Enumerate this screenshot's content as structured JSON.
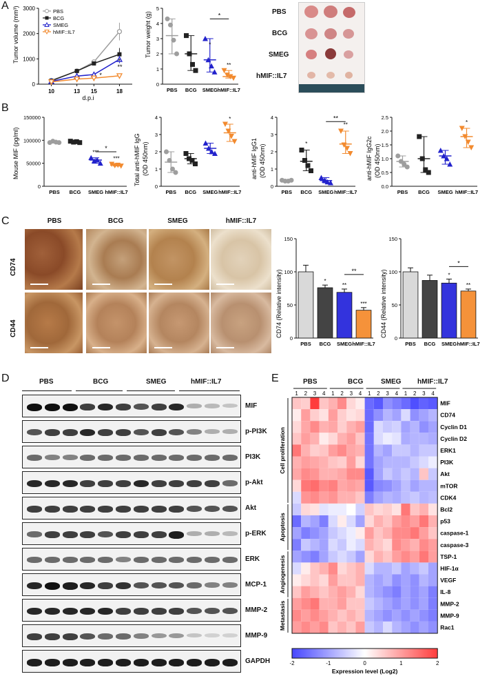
{
  "panels": {
    "A": "A",
    "B": "B",
    "C": "C",
    "D": "D",
    "E": "E"
  },
  "groups": [
    "PBS",
    "BCG",
    "SMEG",
    "hMIF::IL7"
  ],
  "colors": {
    "PBS": "#9e9e9e",
    "BCG": "#222222",
    "SMEG": "#2222cc",
    "hMIF_IL7": "#f28a2e"
  },
  "panelA": {
    "tumor_volume": {
      "ylabel": "Tumor volume (mm³)",
      "xlabel": "d.p.i",
      "x_ticks": [
        "10",
        "13",
        "15",
        "18"
      ],
      "y_ticks": [
        "0",
        "1000",
        "2000",
        "3000"
      ],
      "legend": [
        "PBS",
        "BCG",
        "SMEG",
        "hMIF::IL7"
      ],
      "sig": [
        "*",
        "*",
        "**"
      ]
    },
    "tumor_weight": {
      "ylabel": "Tumor weight (g)",
      "y_ticks": [
        "0",
        "1",
        "2",
        "3",
        "4",
        "5"
      ],
      "sig_bar": "*",
      "sig": [
        "*",
        "**"
      ]
    },
    "photo_labels": [
      "PBS",
      "BCG",
      "SMEG",
      "hMIF::IL7"
    ]
  },
  "panelB": {
    "charts": [
      {
        "ylabel": "Mouse MIF (pg/ml)",
        "y_ticks": [
          "0",
          "50000",
          "100000",
          "150000"
        ],
        "sig_bar": "*",
        "sig": [
          "***",
          "***"
        ]
      },
      {
        "ylabel": "Total anti-hMIF IgG\n(OD 450nm)",
        "y_ticks": [
          "0",
          "1",
          "2",
          "3",
          "4"
        ],
        "sig": [
          "*"
        ]
      },
      {
        "ylabel": "anti-hMIF IgG1\n(OD 450nm)",
        "y_ticks": [
          "0",
          "1",
          "2",
          "3",
          "4"
        ],
        "sig_bar": "**",
        "sig": [
          "*",
          "**"
        ]
      },
      {
        "ylabel": "anti-hMIF IgG2c\n(OD 450nm)",
        "y_ticks": [
          "0.0",
          "0.5",
          "1.0",
          "1.5",
          "2.0",
          "2.5"
        ],
        "sig": [
          "*"
        ]
      }
    ]
  },
  "panelC": {
    "row_labels": [
      "CD74",
      "CD44"
    ],
    "col_labels": [
      "PBS",
      "BCG",
      "SMEG",
      "hMIF::IL7"
    ],
    "cd74": {
      "ylabel": "CD74 (Relative intensity)",
      "y_ticks": [
        "0",
        "50",
        "100",
        "150"
      ],
      "sig_bar": "**",
      "sig": [
        "*",
        "**",
        "***"
      ]
    },
    "cd44": {
      "ylabel": "CD44 (Relative intensity)",
      "y_ticks": [
        "0",
        "50",
        "100",
        "150"
      ],
      "sig_bar": "*",
      "sig": [
        "*",
        "**"
      ]
    }
  },
  "panelD": {
    "group_labels": [
      "PBS",
      "BCG",
      "SMEG",
      "hMIF::IL7"
    ],
    "proteins": [
      "MIF",
      "p-PI3K",
      "PI3K",
      "p-Akt",
      "Akt",
      "p-ERK",
      "ERK",
      "MCP-1",
      "MMP-2",
      "MMP-9",
      "GAPDH"
    ]
  },
  "panelE": {
    "group_labels": [
      "PBS",
      "BCG",
      "SMEG",
      "hMIF::IL7"
    ],
    "replicates": [
      "1",
      "2",
      "3",
      "4"
    ],
    "genes": [
      "MIF",
      "CD74",
      "Cyclin D1",
      "Cyclin D2",
      "ERK1",
      "PI3K",
      "Akt",
      "mTOR",
      "CDK4",
      "Bcl2",
      "p53",
      "caspase-1",
      "caspase-3",
      "TSP-1",
      "HIF-1α",
      "VEGF",
      "IL-8",
      "MMP-2",
      "MMP-9",
      "Rac1"
    ],
    "categories": [
      "Cell proliferation",
      "Apoptosis",
      "Angiogenesis",
      "Metastasis"
    ],
    "colorbar_ticks": [
      "-2",
      "-1",
      "0",
      "1",
      "2"
    ],
    "colorbar_label": "Expression level (Log2)"
  },
  "chart_data": [
    {
      "type": "line",
      "title": "",
      "xlabel": "d.p.i",
      "ylabel": "Tumor volume (mm³)",
      "x": [
        10,
        13,
        15,
        18
      ],
      "ylim": [
        0,
        3000
      ],
      "series": [
        {
          "name": "PBS",
          "values": [
            150,
            520,
            880,
            2080
          ],
          "err": [
            20,
            50,
            90,
            350
          ]
        },
        {
          "name": "BCG",
          "values": [
            130,
            520,
            820,
            1180
          ],
          "err": [
            20,
            40,
            60,
            250
          ]
        },
        {
          "name": "SMEG",
          "values": [
            110,
            320,
            380,
            980
          ],
          "err": [
            15,
            40,
            50,
            150
          ]
        },
        {
          "name": "hMIF::IL7",
          "values": [
            90,
            200,
            240,
            330
          ],
          "err": [
            15,
            30,
            40,
            60
          ]
        }
      ],
      "legend": "top-left"
    },
    {
      "type": "scatter",
      "title": "",
      "ylabel": "Tumor weight (g)",
      "categories": [
        "PBS",
        "BCG",
        "SMEG",
        "hMIF::IL7"
      ],
      "ylim": [
        0,
        5
      ],
      "points": [
        [
          4.3,
          3.9,
          2.9,
          2.0
        ],
        [
          3.2,
          2.0,
          1.3,
          0.9
        ],
        [
          3.0,
          1.6,
          1.2,
          0.8
        ],
        [
          0.9,
          0.6,
          0.5,
          0.4
        ]
      ],
      "means": [
        3.2,
        2.0,
        1.6,
        0.5
      ]
    },
    {
      "type": "scatter",
      "ylabel": "Mouse MIF (pg/ml)",
      "categories": [
        "PBS",
        "BCG",
        "SMEG",
        "hMIF::IL7"
      ],
      "ylim": [
        0,
        150000
      ],
      "points": [
        [
          95000,
          98000,
          96000,
          95000
        ],
        [
          98000,
          96000,
          97000,
          95000
        ],
        [
          62000,
          55000,
          57000,
          50000
        ],
        [
          48000,
          45000,
          46000,
          44000
        ]
      ],
      "means": [
        96000,
        96500,
        57000,
        46000
      ]
    },
    {
      "type": "scatter",
      "ylabel": "Total anti-hMIF IgG (OD 450nm)",
      "categories": [
        "PBS",
        "BCG",
        "SMEG",
        "hMIF::IL7"
      ],
      "ylim": [
        0,
        4
      ],
      "points": [
        [
          2.0,
          1.5,
          1.0,
          0.8
        ],
        [
          1.9,
          1.6,
          1.5,
          1.3
        ],
        [
          2.5,
          2.2,
          2.0,
          1.9
        ],
        [
          3.6,
          3.2,
          2.9,
          2.6
        ]
      ],
      "means": [
        1.4,
        1.6,
        2.2,
        3.1
      ]
    },
    {
      "type": "scatter",
      "ylabel": "anti-hMIF IgG1 (OD 450nm)",
      "categories": [
        "PBS",
        "BCG",
        "SMEG",
        "hMIF::IL7"
      ],
      "ylim": [
        0,
        4
      ],
      "points": [
        [
          0.35,
          0.3,
          0.3,
          0.35
        ],
        [
          2.1,
          1.5,
          1.2,
          0.9
        ],
        [
          0.5,
          0.35,
          0.25,
          0.2
        ],
        [
          3.2,
          2.4,
          2.2,
          1.9
        ]
      ],
      "means": [
        0.32,
        1.45,
        0.33,
        2.45
      ]
    },
    {
      "type": "scatter",
      "ylabel": "anti-hMIF IgG2c (OD 450nm)",
      "categories": [
        "PBS",
        "BCG",
        "SMEG",
        "hMIF::IL7"
      ],
      "ylim": [
        0,
        2.5
      ],
      "points": [
        [
          1.1,
          0.9,
          0.8,
          0.7
        ],
        [
          1.8,
          1.0,
          0.6,
          0.5
        ],
        [
          1.3,
          1.1,
          1.0,
          0.8
        ],
        [
          2.1,
          1.8,
          1.6,
          1.4
        ]
      ],
      "means": [
        0.9,
        1.0,
        1.1,
        1.8
      ]
    },
    {
      "type": "bar",
      "ylabel": "CD74 (Relative intensity)",
      "categories": [
        "PBS",
        "BCG",
        "SMEG",
        "hMIF::IL7"
      ],
      "values": [
        100,
        76,
        69,
        42
      ],
      "err": [
        10,
        4,
        5,
        4
      ],
      "ylim": [
        0,
        150
      ]
    },
    {
      "type": "bar",
      "ylabel": "CD44 (Relative intensity)",
      "categories": [
        "PBS",
        "BCG",
        "SMEG",
        "hMIF::IL7"
      ],
      "values": [
        100,
        87,
        83,
        71
      ],
      "err": [
        6,
        8,
        6,
        3
      ],
      "ylim": [
        0,
        150
      ]
    },
    {
      "type": "heatmap",
      "rows": [
        "MIF",
        "CD74",
        "Cyclin D1",
        "Cyclin D2",
        "ERK1",
        "PI3K",
        "Akt",
        "mTOR",
        "CDK4",
        "Bcl2",
        "p53",
        "caspase-1",
        "caspase-3",
        "TSP-1",
        "HIF-1α",
        "VEGF",
        "IL-8",
        "MMP-2",
        "MMP-9",
        "Rac1"
      ],
      "columns": [
        "PBS 1",
        "PBS 2",
        "PBS 3",
        "PBS 4",
        "BCG 1",
        "BCG 2",
        "BCG 3",
        "BCG 4",
        "SMEG 1",
        "SMEG 2",
        "SMEG 3",
        "SMEG 4",
        "hMIF::IL7 1",
        "hMIF::IL7 2",
        "hMIF::IL7 3",
        "hMIF::IL7 4"
      ],
      "value_range": [
        -2,
        2
      ],
      "values": [
        [
          0.6,
          0.5,
          2.0,
          0.6,
          0.8,
          1.2,
          0.4,
          0.2,
          -1.6,
          -1.8,
          -1.2,
          -1.4,
          -1.6,
          -1.9,
          -1.7,
          -1.8
        ],
        [
          0.2,
          1.0,
          0.5,
          0.3,
          1.0,
          0.5,
          0.3,
          0.4,
          -1.6,
          -1.2,
          -0.8,
          -1.0,
          -0.4,
          -1.2,
          -1.0,
          -0.8
        ],
        [
          0.4,
          0.9,
          1.2,
          0.8,
          0.9,
          0.5,
          0.8,
          1.0,
          -1.6,
          -0.4,
          -0.6,
          -0.5,
          -1.0,
          -0.8,
          -1.2,
          -1.0
        ],
        [
          0.6,
          1.0,
          0.8,
          0.2,
          0.4,
          0.8,
          1.0,
          0.6,
          -1.5,
          -0.4,
          -0.2,
          -0.3,
          -0.9,
          -0.8,
          -0.8,
          -0.9
        ],
        [
          1.4,
          0.8,
          0.5,
          0.6,
          1.0,
          1.2,
          0.9,
          0.8,
          -1.5,
          -0.8,
          -1.0,
          -0.6,
          -0.6,
          -0.8,
          -0.6,
          -0.6
        ],
        [
          0.8,
          1.0,
          0.9,
          0.8,
          0.6,
          0.5,
          1.0,
          0.4,
          -1.5,
          -1.0,
          -0.8,
          -0.8,
          -0.8,
          -0.6,
          -0.4,
          -0.2
        ],
        [
          0.9,
          1.2,
          1.1,
          0.8,
          0.8,
          0.9,
          1.2,
          1.2,
          -1.8,
          -1.0,
          -0.6,
          -0.8,
          -0.6,
          -0.8,
          0.6,
          -0.6
        ],
        [
          0.4,
          1.4,
          1.5,
          1.2,
          1.3,
          0.9,
          1.0,
          0.9,
          -1.8,
          -1.3,
          -1.2,
          -1.0,
          -0.7,
          -1.0,
          -0.8,
          -0.8
        ],
        [
          -0.4,
          1.1,
          1.2,
          1.0,
          1.1,
          0.8,
          0.8,
          0.6,
          -1.4,
          -1.0,
          -0.8,
          -0.9,
          -0.7,
          -0.6,
          -0.8,
          -0.7
        ],
        [
          -0.6,
          0.4,
          0.3,
          -0.3,
          -0.2,
          -0.2,
          0.0,
          -0.5,
          0.6,
          0.4,
          0.5,
          0.3,
          1.4,
          0.6,
          0.8,
          0.3
        ],
        [
          -1.6,
          -0.8,
          -1.0,
          -1.4,
          -0.4,
          0.2,
          -0.4,
          -1.0,
          0.4,
          0.8,
          0.6,
          1.0,
          1.2,
          1.0,
          1.4,
          0.8
        ],
        [
          -1.0,
          -1.4,
          -1.2,
          -1.0,
          -0.6,
          -0.4,
          -0.2,
          0.2,
          1.0,
          0.6,
          0.8,
          1.2,
          1.2,
          1.4,
          1.0,
          0.6
        ],
        [
          -1.4,
          -0.6,
          -0.8,
          -1.0,
          -0.4,
          -0.6,
          -0.2,
          -0.4,
          0.8,
          0.6,
          0.4,
          1.2,
          1.0,
          0.8,
          1.2,
          1.0
        ],
        [
          -1.0,
          -1.2,
          -1.4,
          -1.0,
          -0.6,
          -0.4,
          -0.6,
          -1.0,
          0.4,
          0.8,
          0.6,
          1.0,
          1.2,
          1.0,
          1.4,
          1.0
        ],
        [
          -0.4,
          0.2,
          0.6,
          0.8,
          1.2,
          0.4,
          0.6,
          0.8,
          -0.4,
          -0.8,
          -0.8,
          -0.6,
          -1.0,
          -0.8,
          -0.6,
          -1.0
        ],
        [
          0.2,
          0.4,
          0.6,
          0.4,
          1.0,
          0.6,
          0.6,
          0.8,
          -0.8,
          -1.0,
          -0.8,
          -1.2,
          -1.0,
          -1.2,
          -0.8,
          -1.0
        ],
        [
          0.6,
          1.0,
          0.8,
          0.6,
          0.8,
          1.0,
          0.8,
          0.4,
          -0.8,
          -1.0,
          -1.2,
          -1.4,
          -1.0,
          -1.2,
          -1.0,
          -1.4
        ],
        [
          1.0,
          1.2,
          1.4,
          0.8,
          0.8,
          1.0,
          0.6,
          0.6,
          -0.6,
          -0.8,
          -1.0,
          -1.2,
          -1.0,
          -1.2,
          -1.0,
          -1.4
        ],
        [
          1.2,
          1.0,
          1.2,
          1.0,
          0.8,
          0.6,
          0.8,
          0.6,
          -0.8,
          -1.0,
          -1.2,
          -1.0,
          -1.2,
          -1.0,
          -1.2,
          -1.4
        ],
        [
          1.0,
          1.2,
          1.0,
          1.2,
          0.6,
          0.8,
          0.6,
          1.0,
          -0.6,
          -0.8,
          -0.4,
          -0.8,
          -1.0,
          -1.2,
          -1.0,
          -1.2
        ]
      ]
    }
  ]
}
